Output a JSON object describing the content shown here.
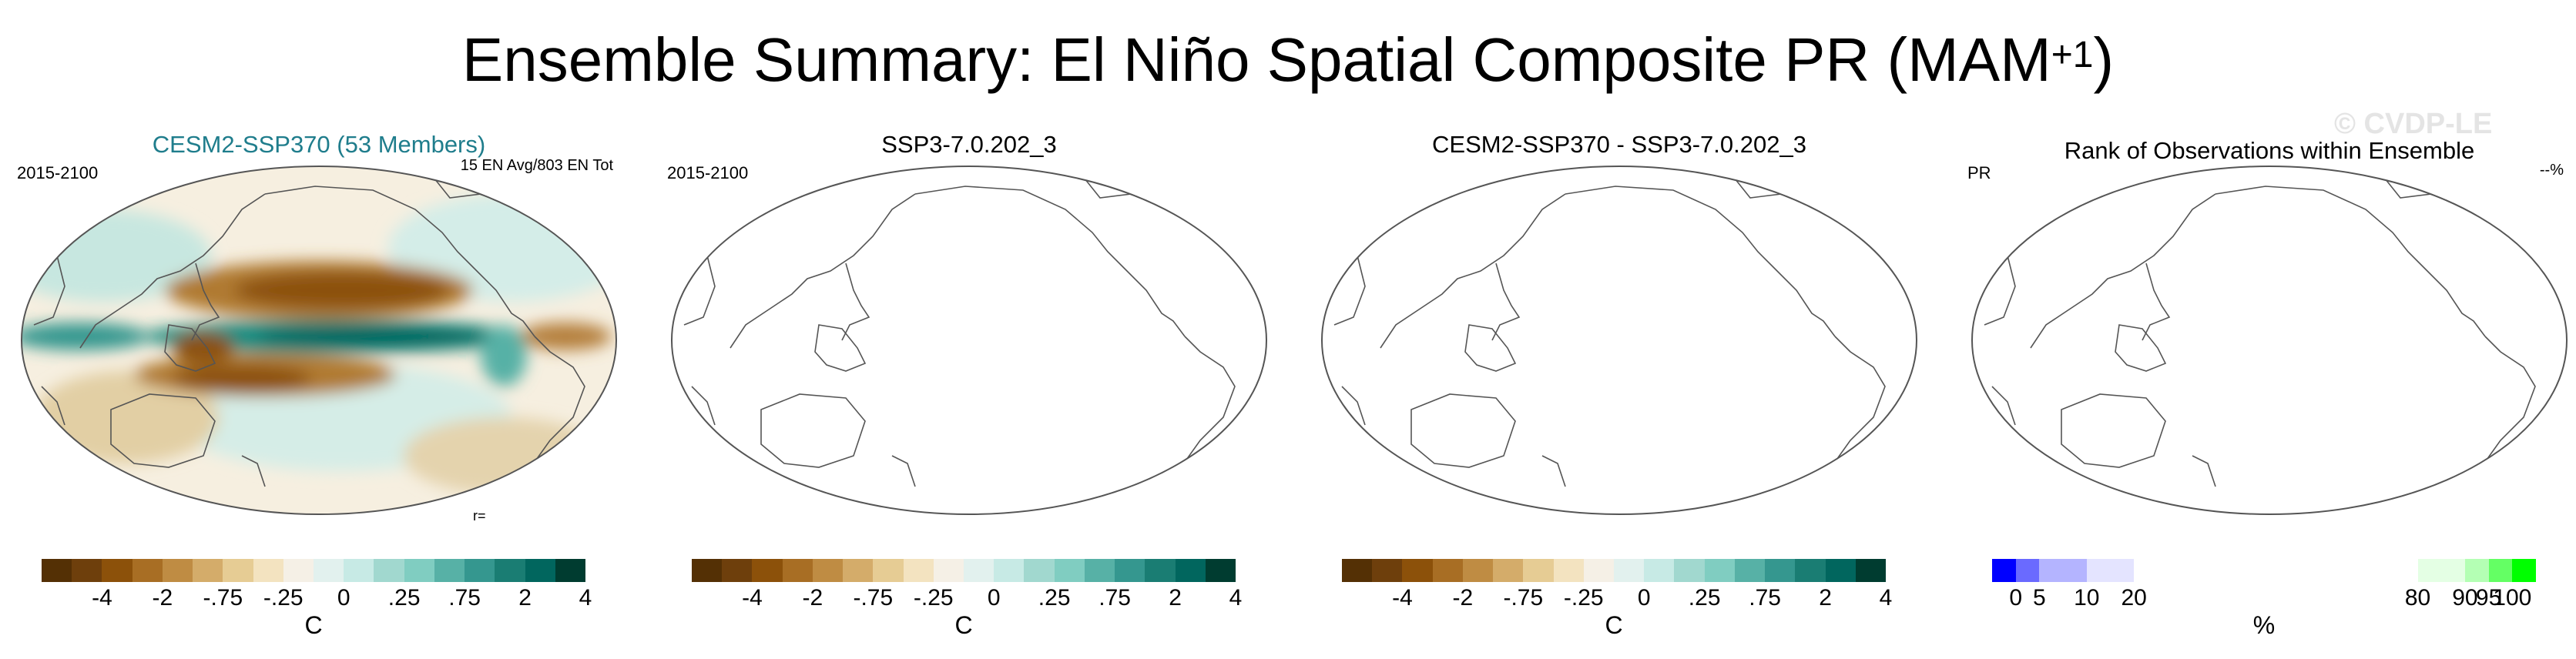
{
  "title_main": "Ensemble Summary: El Niño Spatial Composite PR (MAM",
  "title_sup": "+1",
  "title_end": ")",
  "watermark": "© CVDP-LE",
  "panels": [
    {
      "title": "CESM2-SSP370 (53 Members)",
      "left": "2015-2100",
      "right": "15 EN Avg/803 EN Tot",
      "r_label": "r="
    },
    {
      "title": "SSP3-7.0.202_3",
      "left": "2015-2100",
      "right": ""
    },
    {
      "title": "CESM2-SSP370 - SSP3-7.0.202_3",
      "left": "",
      "right": ""
    },
    {
      "title": "Rank of Observations within Ensemble",
      "left": "PR",
      "right": "--%"
    }
  ],
  "colorbar_precip": {
    "colors": [
      "#543005",
      "#6e3f0c",
      "#8c510a",
      "#a86e24",
      "#bf8c43",
      "#d4ac6a",
      "#e6cc94",
      "#f3e3c0",
      "#f5f0e6",
      "#e2f1ee",
      "#c7eae5",
      "#a1d8cf",
      "#80cdc1",
      "#57b1a6",
      "#35978f",
      "#1a7d73",
      "#01665e",
      "#003c30"
    ],
    "ticks": [
      "-4",
      "-2",
      "-.75",
      "-.25",
      "0",
      ".25",
      ".75",
      "2",
      "4"
    ],
    "unit": "C"
  },
  "colorbar_rank": {
    "colors": [
      "#0000ff",
      "#6a6aff",
      "#b4b4ff",
      "#e4e4ff",
      "#ffffff",
      "#e4ffe4",
      "#b4ffb4",
      "#64ff64",
      "#00ff00"
    ],
    "widths": [
      5,
      5,
      10,
      10,
      60,
      10,
      5,
      5,
      5
    ],
    "ticks": [
      "0",
      "5",
      "10",
      "20",
      "80",
      "90",
      "95",
      "100"
    ],
    "unit": "%"
  }
}
